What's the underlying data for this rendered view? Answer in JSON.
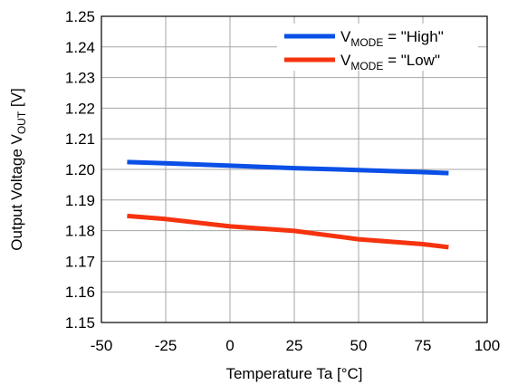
{
  "chart_data": {
    "type": "line",
    "title": "",
    "xlabel": "Temperature Ta [°C]",
    "ylabel": {
      "main": "Output Voltage V",
      "sub": "OUT",
      "suffix": " [V]"
    },
    "xlim": [
      -50,
      100
    ],
    "ylim": [
      1.15,
      1.25
    ],
    "x_ticks": [
      "-50",
      "-25",
      "0",
      "25",
      "50",
      "75",
      "100"
    ],
    "y_ticks": [
      "1.15",
      "1.16",
      "1.17",
      "1.18",
      "1.19",
      "1.20",
      "1.21",
      "1.22",
      "1.23",
      "1.24",
      "1.25"
    ],
    "x_tick_values": [
      -50,
      -25,
      0,
      25,
      50,
      75,
      100
    ],
    "y_tick_values": [
      1.15,
      1.16,
      1.17,
      1.18,
      1.19,
      1.2,
      1.21,
      1.22,
      1.23,
      1.24,
      1.25
    ],
    "grid": true,
    "legend_position": "top-right",
    "series": [
      {
        "name": "V_MODE = \"High\"",
        "legend": {
          "main": "V",
          "sub": "MODE",
          "suffix": " = \"High\""
        },
        "color": "#0a4fe6",
        "x": [
          -40,
          -25,
          0,
          25,
          50,
          75,
          85
        ],
        "y": [
          1.2024,
          1.202,
          1.2012,
          1.2004,
          1.1998,
          1.1991,
          1.1988
        ]
      },
      {
        "name": "V_MODE = \"Low\"",
        "legend": {
          "main": "V",
          "sub": "MODE",
          "suffix": " = \"Low\""
        },
        "color": "#f5330e",
        "x": [
          -40,
          -25,
          0,
          25,
          50,
          75,
          85
        ],
        "y": [
          1.1848,
          1.1838,
          1.1814,
          1.1799,
          1.1772,
          1.1756,
          1.1746
        ]
      }
    ]
  }
}
